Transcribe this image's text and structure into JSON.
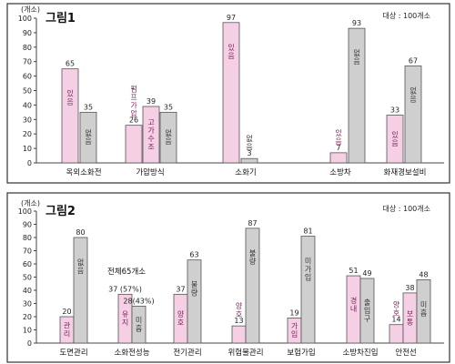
{
  "colors": {
    "pink": "#f5cfe4",
    "gray": "#cfcfcf",
    "frame": "#333333",
    "axis": "#444444"
  },
  "chart_data": [
    {
      "type": "bar",
      "title": "그림1",
      "ylabel": "(개소)",
      "note": "대상 : 100개소",
      "ylim": [
        0,
        100
      ],
      "yticks": [
        0,
        10,
        20,
        30,
        40,
        50,
        60,
        70,
        80,
        90,
        100
      ],
      "categories": [
        "옥외소화전",
        "가압방식",
        "소화기",
        "소방차",
        "화재경보설비"
      ],
      "bars": [
        {
          "cat": 0,
          "series": "pink",
          "value": 65,
          "label": "65",
          "inner": "있음"
        },
        {
          "cat": 0,
          "series": "gray",
          "value": 35,
          "label": "35",
          "inner": "없음"
        },
        {
          "cat": 1,
          "series": "pink",
          "value": 26,
          "label": "26",
          "inner": "펌프가압"
        },
        {
          "cat": 1,
          "series": "pink",
          "value": 39,
          "label": "39",
          "inner": "고가수조"
        },
        {
          "cat": 1,
          "series": "gray",
          "value": 35,
          "label": "35",
          "inner": "없음"
        },
        {
          "cat": 2,
          "series": "pink",
          "value": 97,
          "label": "97",
          "inner": "있음"
        },
        {
          "cat": 2,
          "series": "gray",
          "value": 3,
          "label": "3",
          "inner": "없음"
        },
        {
          "cat": 3,
          "series": "pink",
          "value": 7,
          "label": "7",
          "inner": "있음"
        },
        {
          "cat": 3,
          "series": "gray",
          "value": 93,
          "label": "93",
          "inner": "없음"
        },
        {
          "cat": 4,
          "series": "pink",
          "value": 33,
          "label": "33",
          "inner": "있음"
        },
        {
          "cat": 4,
          "series": "gray",
          "value": 67,
          "label": "67",
          "inner": "없음"
        }
      ]
    },
    {
      "type": "bar",
      "title": "그림2",
      "ylabel": "(개소)",
      "note": "대상 : 100개소",
      "annotation": "전체65개소",
      "ylim": [
        0,
        100
      ],
      "yticks": [
        0,
        10,
        20,
        30,
        40,
        50,
        60,
        70,
        80,
        90,
        100
      ],
      "categories": [
        "도면관리",
        "소화전성능",
        "전기관리",
        "위험물관리",
        "보험가입",
        "소방차진입",
        "안전선"
      ],
      "bars": [
        {
          "cat": 0,
          "series": "pink",
          "value": 20,
          "label": "20",
          "inner": "관리"
        },
        {
          "cat": 0,
          "series": "gray",
          "value": 80,
          "label": "80",
          "inner": "없음"
        },
        {
          "cat": 1,
          "series": "pink",
          "value": 37,
          "label": "37 (57%)",
          "inner": "유지"
        },
        {
          "cat": 1,
          "series": "gray",
          "value": 28,
          "label": "28(43%)",
          "inner": "미흡"
        },
        {
          "cat": 2,
          "series": "pink",
          "value": 37,
          "label": "37",
          "inner": "양호"
        },
        {
          "cat": 2,
          "series": "gray",
          "value": 63,
          "label": "63",
          "inner": "불량"
        },
        {
          "cat": 3,
          "series": "pink",
          "value": 13,
          "label": "13",
          "inner": "양호"
        },
        {
          "cat": 3,
          "series": "gray",
          "value": 87,
          "label": "87",
          "inner": "불량"
        },
        {
          "cat": 4,
          "series": "pink",
          "value": 19,
          "label": "19",
          "inner": "가입"
        },
        {
          "cat": 4,
          "series": "gray",
          "value": 81,
          "label": "81",
          "inner": "미가입"
        },
        {
          "cat": 5,
          "series": "pink",
          "value": 51,
          "label": "51",
          "inner": "경내"
        },
        {
          "cat": 5,
          "series": "gray",
          "value": 49,
          "label": "49",
          "inner": "출입구"
        },
        {
          "cat": 6,
          "series": "pink",
          "value": 14,
          "label": "14",
          "inner": "양호"
        },
        {
          "cat": 6,
          "series": "pink",
          "value": 38,
          "label": "38",
          "inner": "보통"
        },
        {
          "cat": 6,
          "series": "gray",
          "value": 48,
          "label": "48",
          "inner": "미흡"
        }
      ]
    }
  ]
}
